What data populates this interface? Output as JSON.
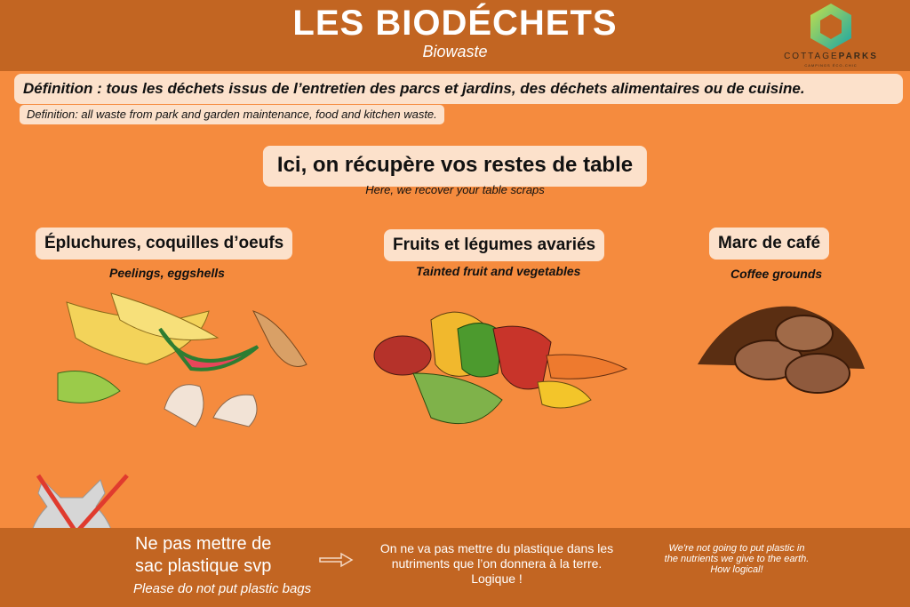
{
  "header": {
    "title": "LES BIODÉCHETS",
    "subtitle": "Biowaste",
    "logo": {
      "name_light": "COTTAGE",
      "name_bold": "PARKS",
      "tagline": "CAMPINGS ÉCO-CHIC"
    }
  },
  "definition": {
    "fr": "Définition : tous les déchets issus de l’entretien des parcs et jardins, des déchets alimentaires ou de cuisine.",
    "en": "Definition: all waste from park and garden maintenance, food and kitchen waste."
  },
  "headline": {
    "fr": "Ici, on récupère vos restes de table",
    "en": "Here, we recover your table scraps"
  },
  "categories": [
    {
      "fr": "Épluchures, coquilles d’oeufs",
      "en": "Peelings, eggshells",
      "icon": "peelings-eggshells-illustration"
    },
    {
      "fr": "Fruits et légumes avariés",
      "en": "Tainted fruit and vegetables",
      "icon": "rotten-vegetables-illustration"
    },
    {
      "fr": "Marc de café",
      "en": "Coffee grounds",
      "icon": "coffee-beans-illustration"
    }
  ],
  "footer": {
    "warning_fr": [
      "Ne pas mettre de",
      "sac plastique svp"
    ],
    "warning_en": "Please do not put plastic bags",
    "reason_fr": [
      "On ne va pas mettre du plastique dans les",
      "nutriments que l’on donnera à la terre.",
      "Logique !"
    ],
    "reason_en": [
      "We're not going to put plastic in",
      "the nutrients we give to the earth.",
      "How logical!"
    ],
    "icons": [
      "crossed-plastic-bag-icon",
      "arrow-icon"
    ]
  },
  "colors": {
    "header": "#C26522",
    "background": "#F58B3E",
    "box": "#FCE1CB",
    "cross": "#E03B2E"
  }
}
